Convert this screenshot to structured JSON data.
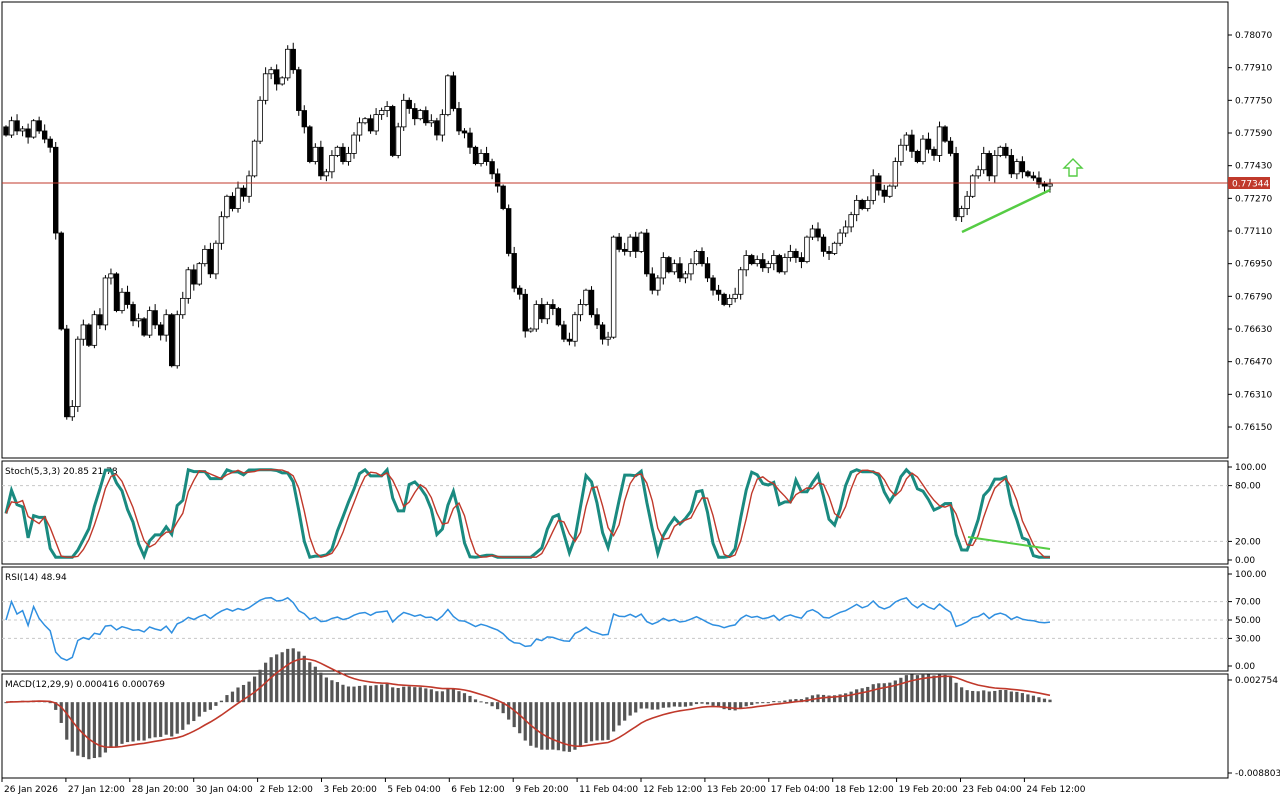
{
  "chart_data": {
    "type": "candlestick",
    "price_ticks": [
      "0.78070",
      "0.77910",
      "0.77750",
      "0.77590",
      "0.77430",
      "0.77270",
      "0.77110",
      "0.76950",
      "0.76790",
      "0.76630",
      "0.76470",
      "0.76310",
      "0.76150"
    ],
    "current_price": 0.77344,
    "current_price_label": "0.77344",
    "price_line_color": "#c0392b",
    "candle_up_color": "#ffffff",
    "candle_down_color": "#000000",
    "trendline_color": "#55cc44",
    "signal_arrow": "up-arrow-icon",
    "x_labels": [
      "26 Jan 2026",
      "27 Jan 12:00",
      "28 Jan 20:00",
      "30 Jan 04:00",
      "2 Feb 12:00",
      "3 Feb 20:00",
      "5 Feb 04:00",
      "6 Feb 12:00",
      "9 Feb 20:00",
      "11 Feb 04:00",
      "12 Feb 12:00",
      "13 Feb 20:00",
      "17 Feb 04:00",
      "18 Feb 12:00",
      "19 Feb 20:00",
      "23 Feb 04:00",
      "24 Feb 12:00"
    ],
    "closes": [
      0.7758,
      0.7765,
      0.776,
      0.7761,
      0.7757,
      0.7765,
      0.776,
      0.7756,
      0.7752,
      0.771,
      0.7663,
      0.762,
      0.7625,
      0.7658,
      0.7665,
      0.7655,
      0.767,
      0.7665,
      0.7688,
      0.769,
      0.7672,
      0.7681,
      0.7675,
      0.7667,
      0.7668,
      0.766,
      0.7672,
      0.7665,
      0.766,
      0.767,
      0.7645,
      0.767,
      0.7678,
      0.7692,
      0.7685,
      0.7695,
      0.7702,
      0.769,
      0.7705,
      0.7718,
      0.7728,
      0.7722,
      0.7732,
      0.7728,
      0.7738,
      0.7755,
      0.7775,
      0.7788,
      0.779,
      0.7783,
      0.7786,
      0.78,
      0.779,
      0.777,
      0.7762,
      0.7745,
      0.7752,
      0.7738,
      0.774,
      0.7748,
      0.7752,
      0.7745,
      0.7749,
      0.7758,
      0.7764,
      0.7766,
      0.776,
      0.7768,
      0.777,
      0.7772,
      0.7748,
      0.7762,
      0.7775,
      0.7771,
      0.7766,
      0.777,
      0.7764,
      0.7765,
      0.7758,
      0.7768,
      0.7787,
      0.7771,
      0.776,
      0.7759,
      0.7752,
      0.7744,
      0.7749,
      0.7745,
      0.7739,
      0.7733,
      0.7722,
      0.77,
      0.7683,
      0.768,
      0.7662,
      0.7663,
      0.7675,
      0.7668,
      0.7675,
      0.7673,
      0.7665,
      0.7658,
      0.7657,
      0.767,
      0.7675,
      0.7682,
      0.767,
      0.7665,
      0.7658,
      0.7659,
      0.7708,
      0.7702,
      0.7701,
      0.7708,
      0.7701,
      0.771,
      0.769,
      0.7682,
      0.7688,
      0.7698,
      0.7691,
      0.7695,
      0.7688,
      0.769,
      0.7695,
      0.7701,
      0.7695,
      0.7688,
      0.7682,
      0.768,
      0.7675,
      0.7678,
      0.768,
      0.7692,
      0.7699,
      0.7695,
      0.7697,
      0.7693,
      0.7695,
      0.7699,
      0.7691,
      0.7698,
      0.7701,
      0.7698,
      0.7696,
      0.7708,
      0.7712,
      0.7708,
      0.7701,
      0.77,
      0.7705,
      0.771,
      0.7713,
      0.7719,
      0.7726,
      0.7722,
      0.7726,
      0.7738,
      0.7731,
      0.7728,
      0.7733,
      0.7745,
      0.7753,
      0.7758,
      0.775,
      0.7745,
      0.7756,
      0.7751,
      0.7748,
      0.7762,
      0.7755,
      0.7749,
      0.7718,
      0.7722,
      0.7728,
      0.7738,
      0.7741,
      0.7749,
      0.7738,
      0.7748,
      0.7752,
      0.7748,
      0.7739,
      0.7745,
      0.774,
      0.7738,
      0.7737,
      0.7734,
      0.7733,
      0.7734
    ],
    "stoch": {
      "label": "Stoch(5,3,3) 20.85 21.78",
      "ticks": [
        "100.00",
        "80.00",
        "20.00",
        "0.00"
      ],
      "main_color": "#1a8a80",
      "signal_color": "#c0392b"
    },
    "rsi": {
      "label": "RSI(14) 48.94",
      "ticks": [
        "100.00",
        "70.00",
        "50.00",
        "30.00",
        "0.00"
      ],
      "color": "#2f8fe0"
    },
    "macd": {
      "label": "MACD(12,29,9) 0.000416 0.000769",
      "ticks": [
        "0.002754",
        "-0.008803"
      ],
      "histogram_color": "#555555",
      "signal_color": "#c0392b"
    }
  }
}
